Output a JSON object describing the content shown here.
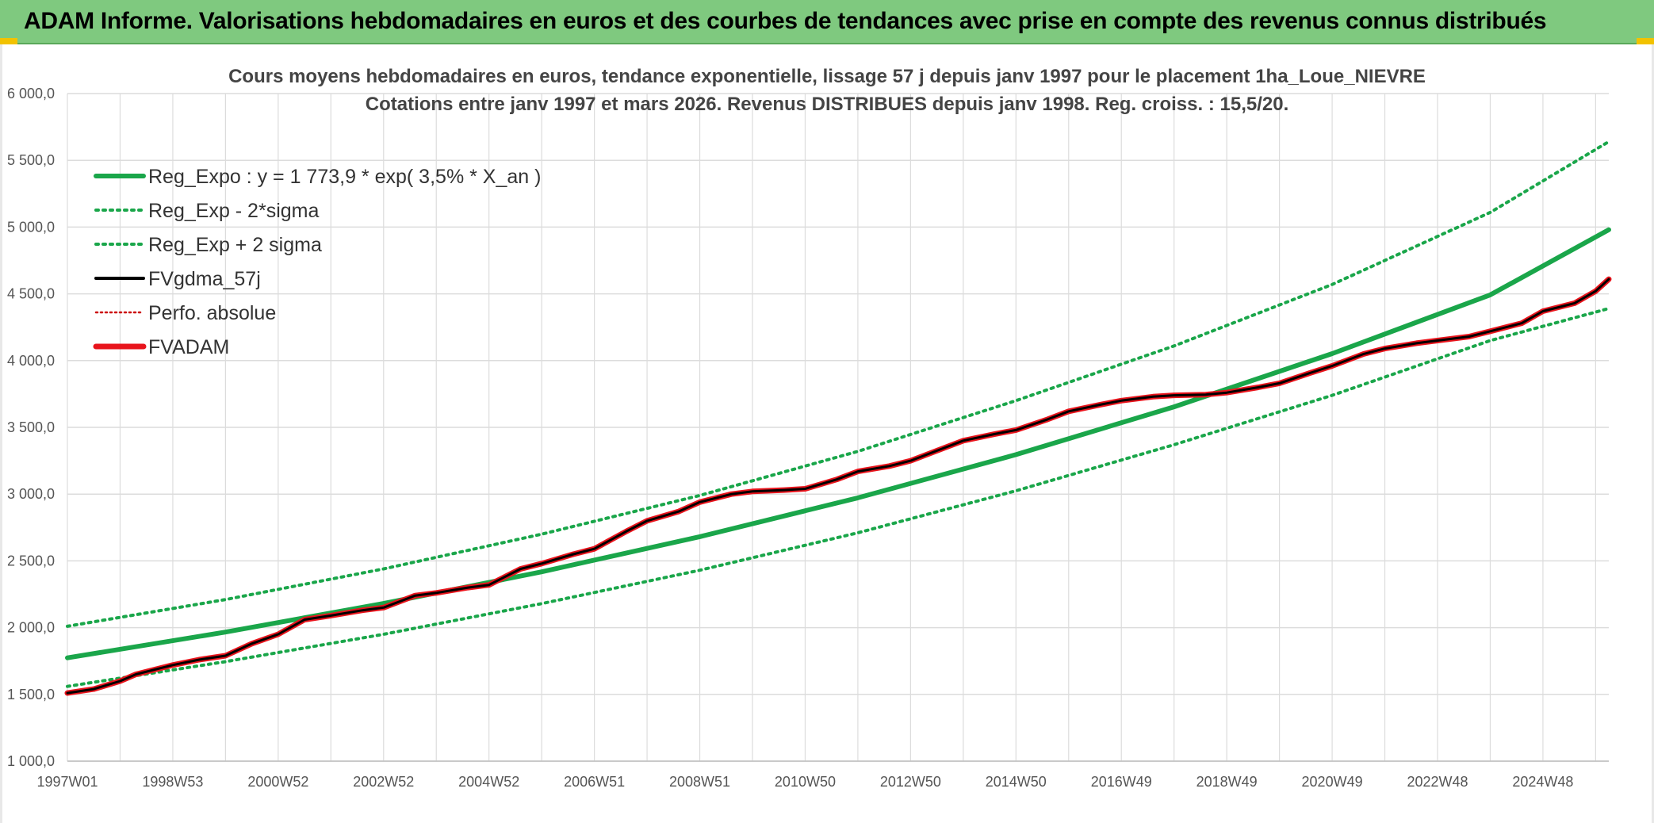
{
  "banner": {
    "title": "ADAM Informe. Valorisations hebdomadaires en euros et des courbes de tendances avec prise en compte des revenus connus distribués"
  },
  "colors": {
    "banner_bg": "#7fc97f",
    "reg_green": "#1aa64a",
    "fv_black": "#000000",
    "fvadam_red": "#e8141c",
    "perfo_red": "#cc0000",
    "grid": "#dcdcdc"
  },
  "chart_data": {
    "type": "line",
    "title_lines": [
      "Cours moyens hebdomadaires en euros, tendance exponentielle, lissage 57 j depuis janv 1997 pour le placement 1ha_Loue_NIEVRE",
      "Cotations entre janv 1997 et mars 2026. Revenus DISTRIBUES depuis janv 1998. Reg. croiss. : 15,5/20."
    ],
    "x_range": [
      1997.0,
      2026.25
    ],
    "ylim": [
      1000,
      6000
    ],
    "y_ticks": [
      1000,
      1500,
      2000,
      2500,
      3000,
      3500,
      4000,
      4500,
      5000,
      5500,
      6000
    ],
    "y_tick_labels": [
      "1 000,0",
      "1 500,0",
      "2 000,0",
      "2 500,0",
      "3 000,0",
      "3 500,0",
      "4 000,0",
      "4 500,0",
      "5 000,0",
      "5 500,0",
      "6 000,0"
    ],
    "x_ticks": [
      {
        "x": 1997.0,
        "label": "1997W01"
      },
      {
        "x": 1999.0,
        "label": "1998W53"
      },
      {
        "x": 2001.0,
        "label": "2000W52"
      },
      {
        "x": 2003.0,
        "label": "2002W52"
      },
      {
        "x": 2005.0,
        "label": "2004W52"
      },
      {
        "x": 2007.0,
        "label": "2006W51"
      },
      {
        "x": 2009.0,
        "label": "2008W51"
      },
      {
        "x": 2011.0,
        "label": "2010W50"
      },
      {
        "x": 2013.0,
        "label": "2012W50"
      },
      {
        "x": 2015.0,
        "label": "2014W50"
      },
      {
        "x": 2017.0,
        "label": "2016W49"
      },
      {
        "x": 2019.0,
        "label": "2018W49"
      },
      {
        "x": 2021.0,
        "label": "2020W49"
      },
      {
        "x": 2023.0,
        "label": "2022W48"
      },
      {
        "x": 2025.0,
        "label": "2024W48"
      }
    ],
    "grid": true,
    "legend_position": "top-left",
    "series": [
      {
        "name": "Reg_Expo : y = 1 773,9 * exp( 3,5% *  X_an )",
        "style": "solid",
        "color": "#1aa64a",
        "x": [
          1997,
          2000,
          2003,
          2006,
          2009,
          2012,
          2015,
          2018,
          2021,
          2024,
          2026.25
        ],
        "y": [
          1774,
          1967,
          2181,
          2418,
          2681,
          2972,
          3296,
          3654,
          4052,
          4492,
          4980
        ]
      },
      {
        "name": "Reg_Exp - 2*sigma",
        "style": "dotted",
        "color": "#1aa64a",
        "x": [
          1997,
          2000,
          2003,
          2006,
          2009,
          2012,
          2015,
          2018,
          2021,
          2024,
          2026.25
        ],
        "y": [
          1560,
          1745,
          1950,
          2180,
          2430,
          2710,
          3025,
          3370,
          3740,
          4150,
          4390
        ]
      },
      {
        "name": "Reg_Exp + 2 sigma",
        "style": "dotted",
        "color": "#1aa64a",
        "x": [
          1997,
          2000,
          2003,
          2006,
          2009,
          2012,
          2015,
          2018,
          2021,
          2024,
          2026.25
        ],
        "y": [
          2010,
          2210,
          2440,
          2700,
          2990,
          3320,
          3700,
          4110,
          4570,
          5110,
          5640
        ]
      },
      {
        "name": "FVgdma_57j",
        "style": "solid",
        "color": "#000000",
        "x": [
          1997,
          1997.5,
          1998,
          1998.3,
          1999,
          1999.5,
          2000,
          2000.5,
          2001,
          2001.5,
          2002,
          2002.6,
          2003,
          2003.6,
          2004,
          2004.6,
          2005,
          2005.6,
          2006,
          2006.6,
          2007,
          2007.6,
          2008,
          2008.6,
          2009,
          2009.6,
          2010,
          2010.6,
          2011,
          2011.6,
          2012,
          2012.6,
          2013,
          2013.6,
          2014,
          2014.6,
          2015,
          2015.6,
          2016,
          2016.6,
          2017,
          2017.6,
          2018,
          2018.6,
          2019,
          2019.6,
          2020,
          2020.6,
          2021,
          2021.6,
          2022,
          2022.6,
          2023,
          2023.6,
          2024,
          2024.6,
          2025,
          2025.6,
          2026,
          2026.25
        ],
        "y": [
          1510,
          1540,
          1600,
          1650,
          1720,
          1760,
          1790,
          1880,
          1950,
          2060,
          2090,
          2130,
          2150,
          2240,
          2260,
          2300,
          2320,
          2440,
          2480,
          2550,
          2590,
          2720,
          2800,
          2870,
          2940,
          3000,
          3020,
          3030,
          3040,
          3110,
          3170,
          3210,
          3250,
          3340,
          3400,
          3450,
          3480,
          3560,
          3620,
          3670,
          3700,
          3730,
          3740,
          3745,
          3760,
          3800,
          3830,
          3910,
          3960,
          4050,
          4090,
          4130,
          4150,
          4180,
          4220,
          4280,
          4370,
          4430,
          4520,
          4610
        ]
      },
      {
        "name": "Perfo. absolue",
        "style": "dotted",
        "color": "#cc0000",
        "x": [],
        "y": []
      },
      {
        "name": "FVADAM",
        "style": "solid",
        "color": "#e8141c",
        "x": [
          1997,
          1997.5,
          1998,
          1998.3,
          1999,
          1999.5,
          2000,
          2000.5,
          2001,
          2001.5,
          2002,
          2002.6,
          2003,
          2003.6,
          2004,
          2004.6,
          2005,
          2005.6,
          2006,
          2006.6,
          2007,
          2007.6,
          2008,
          2008.6,
          2009,
          2009.6,
          2010,
          2010.6,
          2011,
          2011.6,
          2012,
          2012.6,
          2013,
          2013.6,
          2014,
          2014.6,
          2015,
          2015.6,
          2016,
          2016.6,
          2017,
          2017.6,
          2018,
          2018.6,
          2019,
          2019.6,
          2020,
          2020.6,
          2021,
          2021.6,
          2022,
          2022.6,
          2023,
          2023.6,
          2024,
          2024.6,
          2025,
          2025.6,
          2026,
          2026.25
        ],
        "y": [
          1510,
          1540,
          1600,
          1650,
          1720,
          1760,
          1790,
          1880,
          1950,
          2060,
          2090,
          2130,
          2150,
          2240,
          2260,
          2300,
          2320,
          2440,
          2480,
          2550,
          2590,
          2720,
          2800,
          2870,
          2940,
          3000,
          3020,
          3030,
          3040,
          3110,
          3170,
          3210,
          3250,
          3340,
          3400,
          3450,
          3480,
          3560,
          3620,
          3670,
          3700,
          3730,
          3740,
          3745,
          3760,
          3800,
          3830,
          3910,
          3960,
          4050,
          4090,
          4130,
          4150,
          4180,
          4220,
          4280,
          4370,
          4430,
          4520,
          4610
        ]
      }
    ]
  }
}
